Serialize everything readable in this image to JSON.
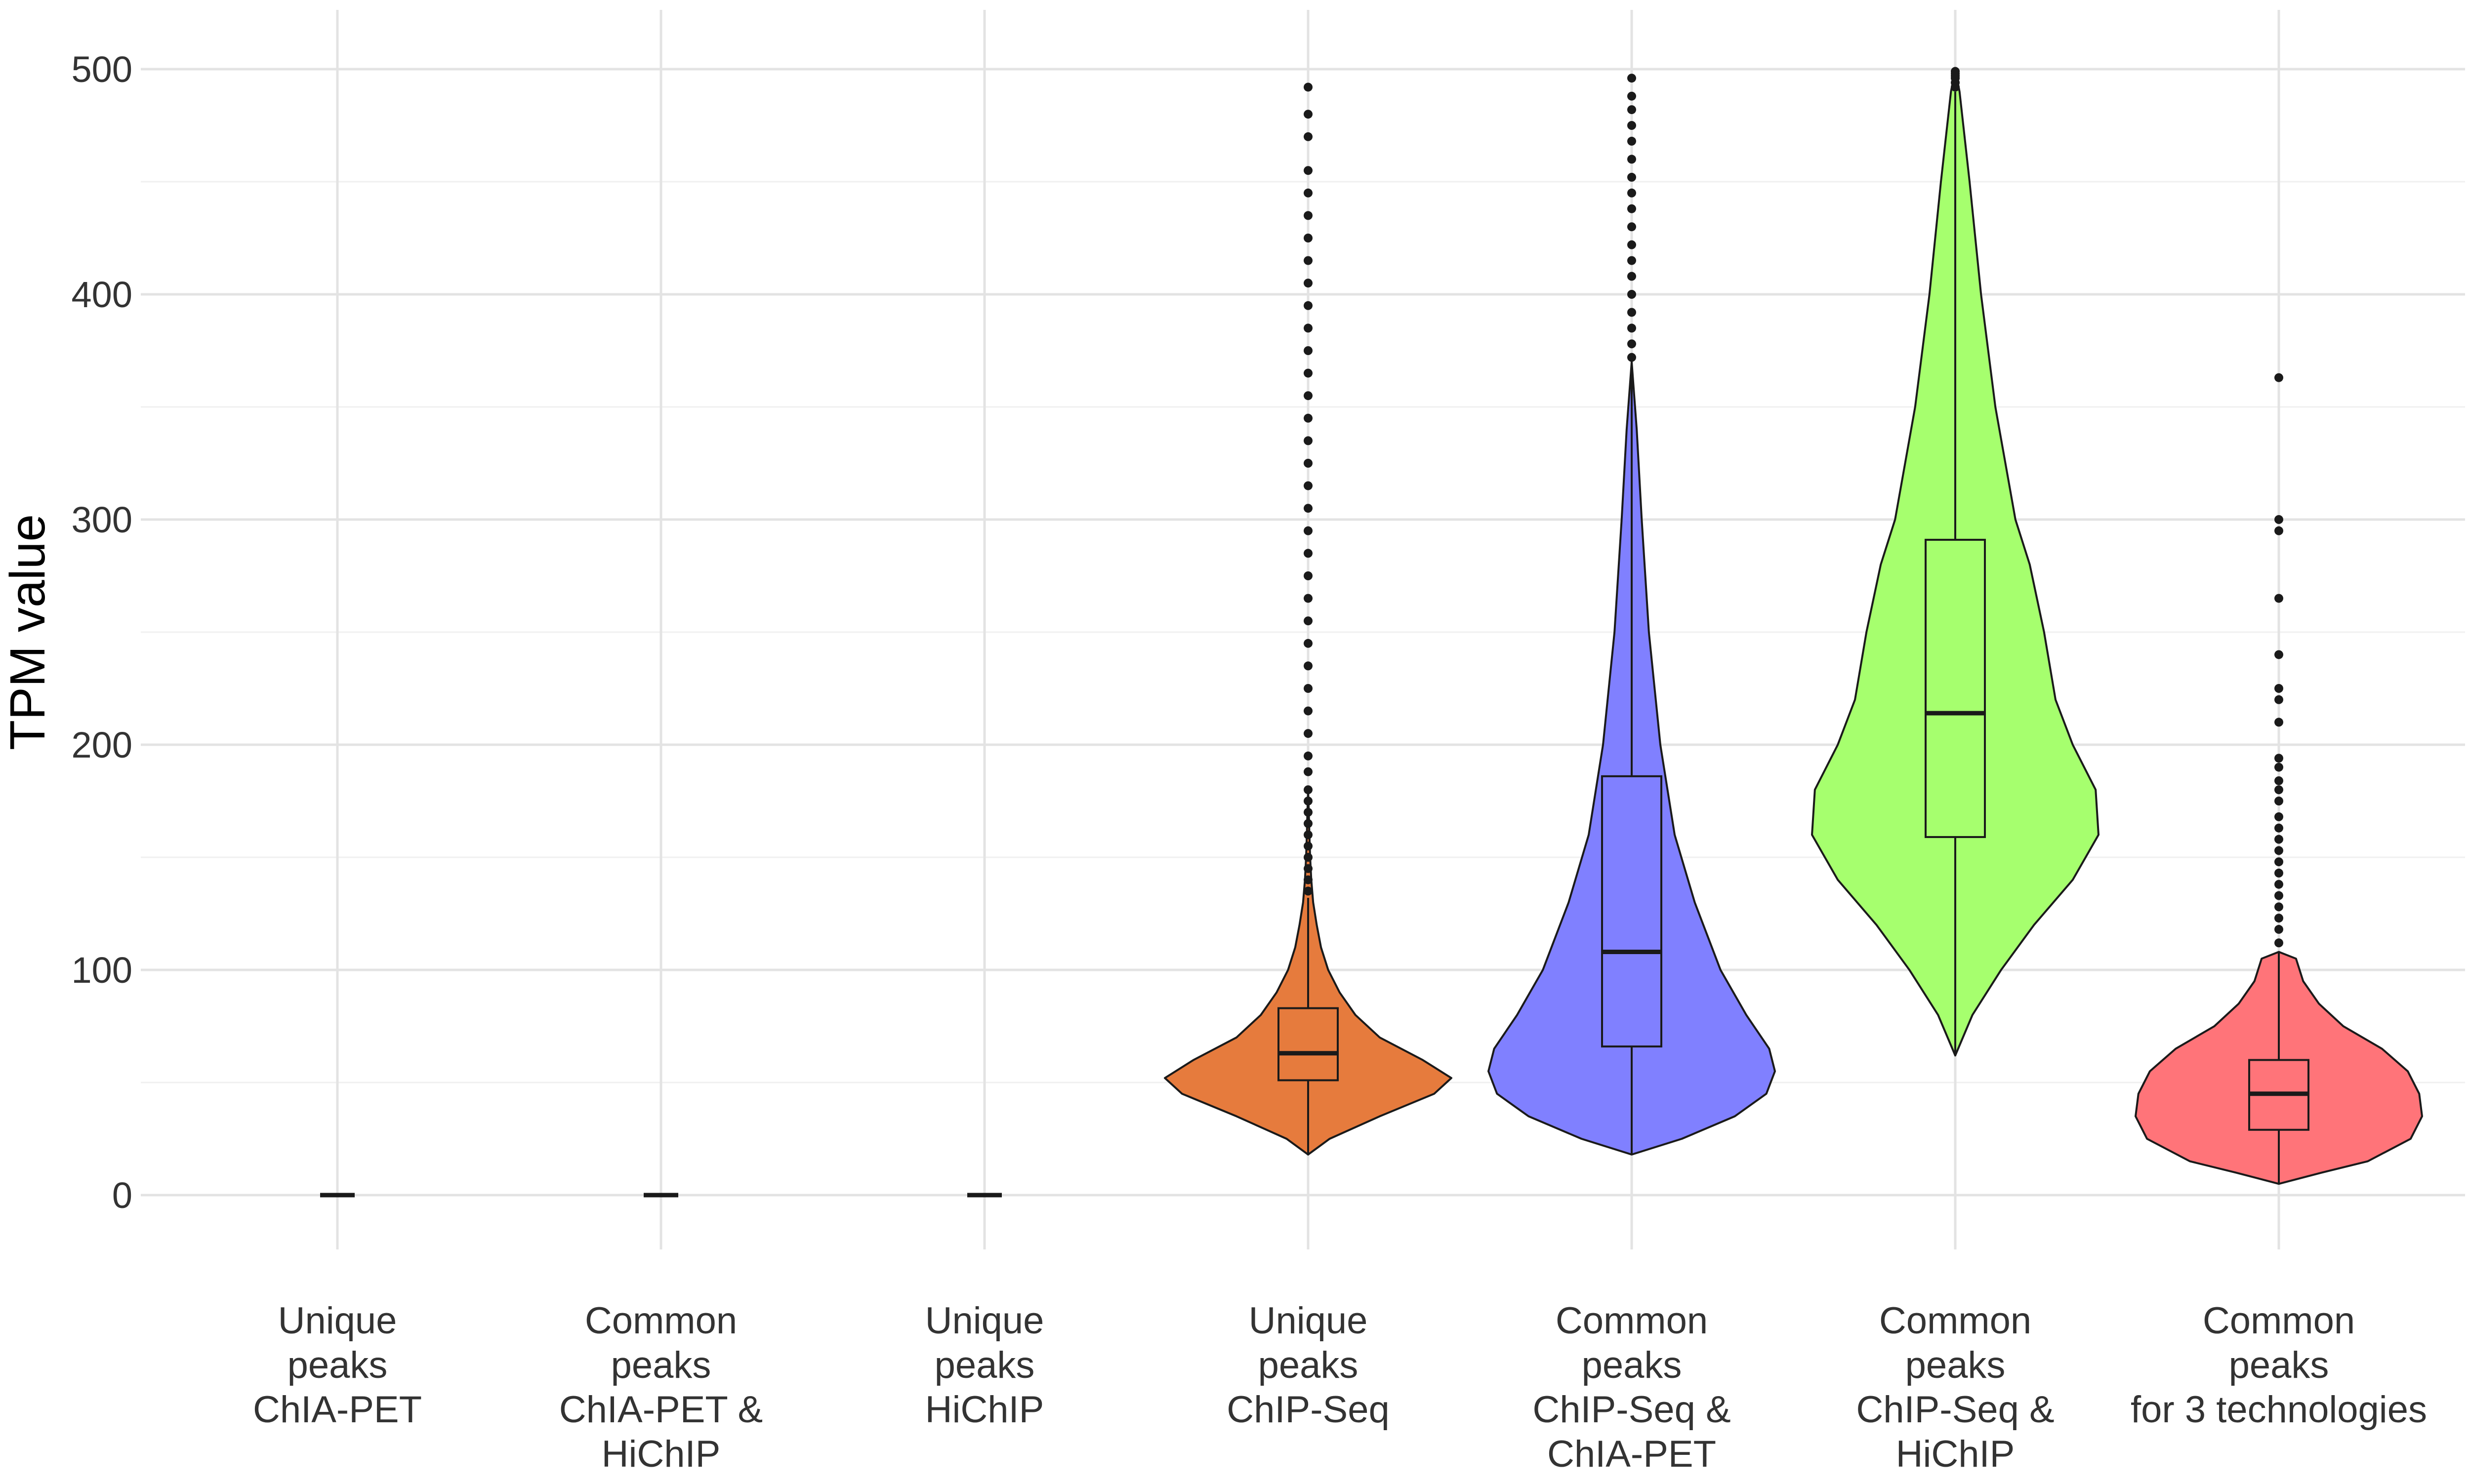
{
  "chart_data": {
    "type": "violin",
    "title": "",
    "xlabel": "",
    "ylabel": "TPM value",
    "ylim": [
      -25,
      525
    ],
    "yticks": [
      0,
      100,
      200,
      300,
      400,
      500
    ],
    "grid": true,
    "legend": "none",
    "categories": [
      {
        "label_lines": [
          "Unique",
          "peaks",
          "ChIA-PET"
        ],
        "color": "#333333",
        "box": {
          "min": 0,
          "q1": 0,
          "median": 0,
          "q3": 0,
          "max": 0
        },
        "outliers": [],
        "density": []
      },
      {
        "label_lines": [
          "Common",
          "peaks",
          "ChIA-PET &",
          "HiChIP"
        ],
        "color": "#333333",
        "box": {
          "min": 0,
          "q1": 0,
          "median": 0,
          "q3": 0,
          "max": 0
        },
        "outliers": [],
        "density": []
      },
      {
        "label_lines": [
          "Unique",
          "peaks",
          "HiChIP"
        ],
        "color": "#333333",
        "box": {
          "min": 0,
          "q1": 0,
          "median": 0,
          "q3": 0,
          "max": 0
        },
        "outliers": [],
        "density": []
      },
      {
        "label_lines": [
          "Unique",
          "peaks",
          "ChIP-Seq"
        ],
        "color": "#E67B3D",
        "box": {
          "min": 18,
          "q1": 51,
          "median": 63,
          "q3": 83,
          "max": 132
        },
        "outliers": [
          135,
          140,
          145,
          150,
          155,
          160,
          165,
          170,
          175,
          180,
          188,
          195,
          205,
          215,
          225,
          235,
          245,
          255,
          265,
          275,
          285,
          295,
          305,
          315,
          325,
          335,
          345,
          355,
          365,
          375,
          385,
          395,
          405,
          415,
          425,
          435,
          445,
          455,
          470,
          480,
          492
        ],
        "density": [
          [
            18,
            0.0
          ],
          [
            25,
            0.15
          ],
          [
            35,
            0.5
          ],
          [
            45,
            0.88
          ],
          [
            52,
            1.0
          ],
          [
            60,
            0.8
          ],
          [
            70,
            0.5
          ],
          [
            80,
            0.33
          ],
          [
            90,
            0.22
          ],
          [
            100,
            0.14
          ],
          [
            110,
            0.09
          ],
          [
            120,
            0.06
          ],
          [
            130,
            0.035
          ],
          [
            140,
            0.022
          ],
          [
            150,
            0.014
          ],
          [
            160,
            0.009
          ],
          [
            170,
            0.005
          ],
          [
            180,
            0.0
          ]
        ]
      },
      {
        "label_lines": [
          "Common",
          "peaks",
          "ChIP-Seq &",
          "ChIA-PET"
        ],
        "color": "#8080FF",
        "box": {
          "min": 18,
          "q1": 66,
          "median": 108,
          "q3": 186,
          "max": 368
        },
        "outliers": [
          372,
          378,
          385,
          392,
          400,
          408,
          415,
          422,
          430,
          438,
          445,
          452,
          460,
          468,
          475,
          482,
          488,
          496
        ],
        "density": [
          [
            18,
            0.0
          ],
          [
            25,
            0.35
          ],
          [
            35,
            0.72
          ],
          [
            45,
            0.94
          ],
          [
            55,
            1.0
          ],
          [
            65,
            0.96
          ],
          [
            80,
            0.8
          ],
          [
            100,
            0.62
          ],
          [
            130,
            0.44
          ],
          [
            160,
            0.3
          ],
          [
            200,
            0.2
          ],
          [
            250,
            0.12
          ],
          [
            300,
            0.07
          ],
          [
            340,
            0.035
          ],
          [
            370,
            0.0
          ]
        ]
      },
      {
        "label_lines": [
          "Common",
          "peaks",
          "ChIP-Seq &",
          "HiChIP"
        ],
        "color": "#A6FF6E",
        "box": {
          "min": 62,
          "q1": 159,
          "median": 214,
          "q3": 291,
          "max": 490
        },
        "outliers": [
          492,
          494,
          496,
          497,
          498,
          499
        ],
        "density": [
          [
            62,
            0.0
          ],
          [
            80,
            0.12
          ],
          [
            100,
            0.32
          ],
          [
            120,
            0.55
          ],
          [
            140,
            0.82
          ],
          [
            160,
            1.0
          ],
          [
            180,
            0.98
          ],
          [
            200,
            0.82
          ],
          [
            220,
            0.7
          ],
          [
            250,
            0.62
          ],
          [
            280,
            0.52
          ],
          [
            300,
            0.42
          ],
          [
            350,
            0.28
          ],
          [
            400,
            0.18
          ],
          [
            450,
            0.1
          ],
          [
            490,
            0.03
          ],
          [
            500,
            0.0
          ]
        ]
      },
      {
        "label_lines": [
          "Common",
          "peaks",
          "for 3 technologies"
        ],
        "color": "#FF7479",
        "box": {
          "min": 5,
          "q1": 29,
          "median": 45,
          "q3": 60,
          "max": 108
        },
        "outliers": [
          112,
          118,
          123,
          128,
          133,
          138,
          143,
          148,
          153,
          158,
          163,
          168,
          175,
          180,
          184,
          190,
          194,
          210,
          220,
          225,
          240,
          265,
          295,
          300,
          363
        ],
        "density": [
          [
            5,
            0.0
          ],
          [
            10,
            0.3
          ],
          [
            15,
            0.62
          ],
          [
            25,
            0.92
          ],
          [
            35,
            1.0
          ],
          [
            45,
            0.98
          ],
          [
            55,
            0.9
          ],
          [
            65,
            0.72
          ],
          [
            75,
            0.45
          ],
          [
            85,
            0.28
          ],
          [
            95,
            0.17
          ],
          [
            105,
            0.12
          ],
          [
            108,
            0.0
          ]
        ]
      }
    ]
  }
}
